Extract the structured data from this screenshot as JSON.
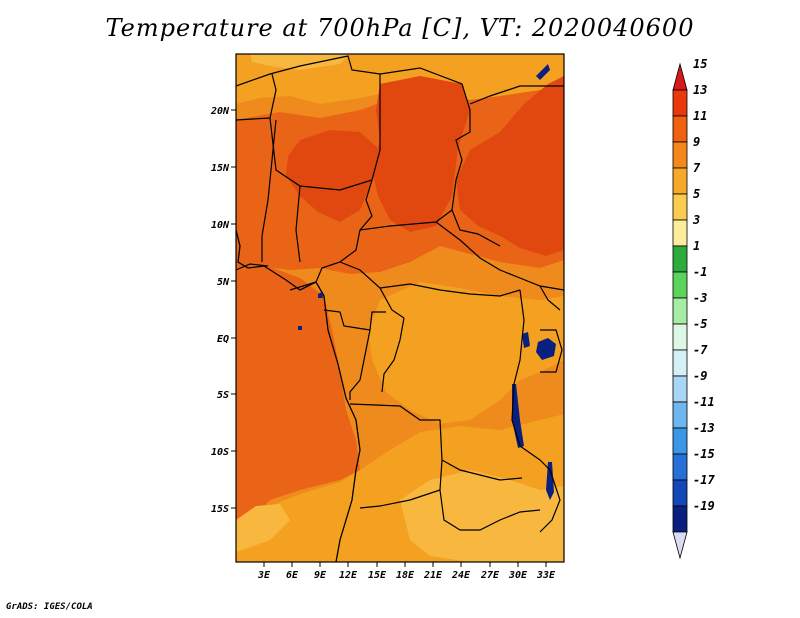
{
  "title": "Temperature at 700hPa [C], VT: 2020040600",
  "credit": "GrADS: IGES/COLA",
  "map": {
    "lon_ticks": [
      "3E",
      "6E",
      "9E",
      "12E",
      "15E",
      "18E",
      "21E",
      "24E",
      "27E",
      "30E",
      "33E"
    ],
    "lat_ticks": [
      "20N",
      "15N",
      "10N",
      "5N",
      "EQ",
      "5S",
      "10S",
      "15S"
    ]
  },
  "colorbar": {
    "labels": [
      "15",
      "13",
      "11",
      "9",
      "7",
      "5",
      "3",
      "1",
      "-1",
      "-3",
      "-5",
      "-7",
      "-9",
      "-11",
      "-13",
      "-15",
      "-17",
      "-19"
    ],
    "colors": [
      "#d7191c",
      "#e9380c",
      "#f0620f",
      "#f5881a",
      "#f8a828",
      "#fbcc50",
      "#fcec9c",
      "#2cac3c",
      "#5cd45c",
      "#a6eca6",
      "#dcf7e4",
      "#d6f0f8",
      "#a8d6f6",
      "#6eb6f0",
      "#3c96e8",
      "#2670d8",
      "#1448b8",
      "#0a2080",
      "#d8dcf4"
    ]
  },
  "field_colors": {
    "c7": "#f8b840",
    "c9": "#f4a020",
    "c11": "#ef8a1c",
    "c13": "#ea6418",
    "c15": "#e04810"
  }
}
